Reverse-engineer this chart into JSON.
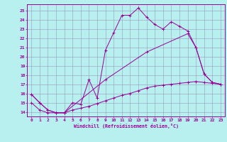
{
  "xlabel": "Windchill (Refroidissement éolien,°C)",
  "background_color": "#b8f0f0",
  "grid_color": "#9999bb",
  "line_color": "#990099",
  "xlim": [
    -0.5,
    23.5
  ],
  "ylim": [
    13.5,
    25.7
  ],
  "yticks": [
    14,
    15,
    16,
    17,
    18,
    19,
    20,
    21,
    22,
    23,
    24,
    25
  ],
  "xticks": [
    0,
    1,
    2,
    3,
    4,
    5,
    6,
    7,
    8,
    9,
    10,
    11,
    12,
    13,
    14,
    15,
    16,
    17,
    18,
    19,
    20,
    21,
    22,
    23
  ],
  "series": [
    {
      "x": [
        0,
        1,
        2,
        3,
        4,
        5,
        6,
        7,
        8,
        9,
        10,
        11,
        12,
        13,
        14,
        15,
        16,
        17,
        18,
        19,
        20,
        21,
        22,
        23
      ],
      "y": [
        15.9,
        15.0,
        14.2,
        13.9,
        13.9,
        15.0,
        14.8,
        17.5,
        15.5,
        20.7,
        22.6,
        24.5,
        24.5,
        25.3,
        24.3,
        23.5,
        23.0,
        23.8,
        23.3,
        22.8,
        21.0,
        18.1,
        17.2,
        17.0
      ]
    },
    {
      "x": [
        0,
        1,
        2,
        3,
        4,
        5,
        6,
        7,
        8,
        9,
        10,
        11,
        12,
        13,
        14,
        15,
        16,
        17,
        18,
        19,
        20,
        21,
        22,
        23
      ],
      "y": [
        15.0,
        14.2,
        13.9,
        13.9,
        13.9,
        14.2,
        14.4,
        14.6,
        14.9,
        15.2,
        15.5,
        15.8,
        16.0,
        16.3,
        16.6,
        16.8,
        16.9,
        17.0,
        17.1,
        17.2,
        17.3,
        17.2,
        17.1,
        17.0
      ]
    },
    {
      "x": [
        0,
        1,
        2,
        3,
        4,
        9,
        14,
        19,
        20,
        21,
        22,
        23
      ],
      "y": [
        15.9,
        15.0,
        14.2,
        13.9,
        13.9,
        17.5,
        20.5,
        22.5,
        21.0,
        18.1,
        17.2,
        17.0
      ]
    }
  ]
}
